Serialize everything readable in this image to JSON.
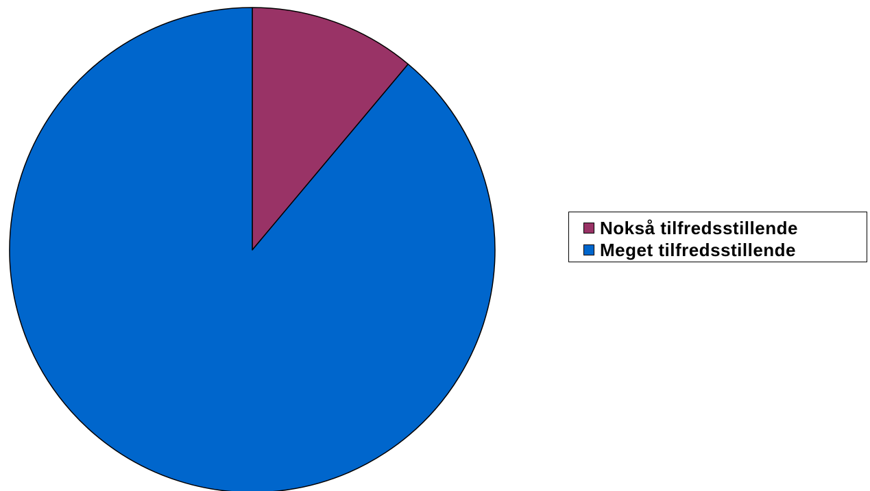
{
  "chart_data": {
    "type": "pie",
    "slices": [
      {
        "label": "Nokså tilfredsstillende",
        "value": 11.1,
        "color": "#993366"
      },
      {
        "label": "Meget tilfredsstillende",
        "value": 88.9,
        "color": "#0066CC"
      }
    ],
    "start_angle": "12 o'clock",
    "direction": "clockwise",
    "legend": "right"
  }
}
